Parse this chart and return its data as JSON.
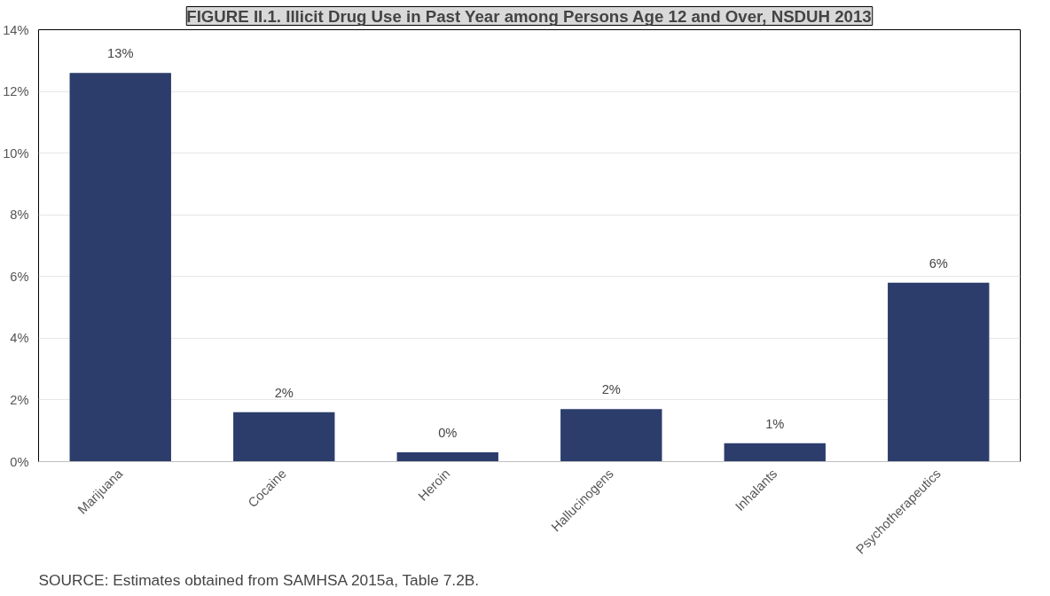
{
  "chart_data": {
    "type": "bar",
    "title": "FIGURE II.1. Illicit Drug Use in Past Year among Persons Age 12 and Over, NSDUH 2013",
    "categories": [
      "Marijuana",
      "Cocaine",
      "Heroin",
      "Hallucinogens",
      "Inhalants",
      "Psychotherapeutics"
    ],
    "values": [
      12.6,
      1.6,
      0.3,
      1.7,
      0.6,
      5.8
    ],
    "value_labels": [
      "13%",
      "2%",
      "0%",
      "2%",
      "1%",
      "6%"
    ],
    "color": "#2c3d6b",
    "ylim": [
      0,
      14
    ],
    "yticks": [
      {
        "value": 0,
        "label": "0%"
      },
      {
        "value": 2,
        "label": "2%"
      },
      {
        "value": 4,
        "label": "4%"
      },
      {
        "value": 6,
        "label": "6%"
      },
      {
        "value": 8,
        "label": "8%"
      },
      {
        "value": 10,
        "label": "10%"
      },
      {
        "value": 12,
        "label": "12%"
      },
      {
        "value": 14,
        "label": "14%"
      }
    ],
    "grid": "y",
    "annotations": [
      "SOURCE: Estimates obtained from SAMHSA 2015a, Table 7.2B."
    ]
  }
}
